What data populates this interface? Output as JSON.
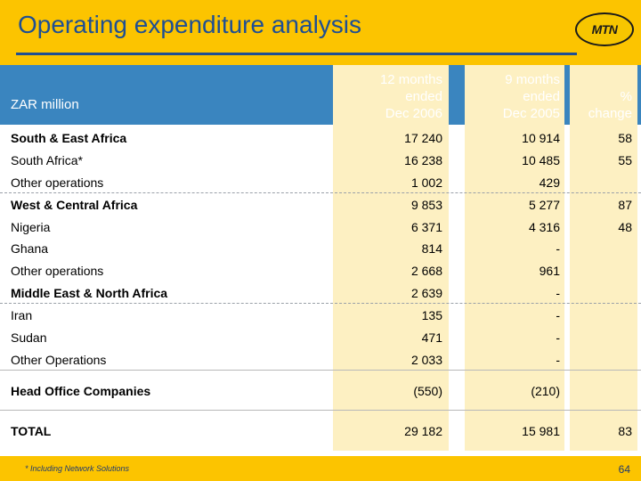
{
  "header": {
    "title": "Operating expenditure analysis",
    "logo_text": "MTN"
  },
  "table": {
    "label_header": "ZAR million",
    "col1": [
      "12 months",
      "ended",
      "Dec 2006"
    ],
    "col2": [
      "9 months",
      "ended",
      "Dec 2005"
    ],
    "col3": [
      "%",
      "change"
    ],
    "rows": [
      {
        "label": "South & East Africa",
        "v1": "17 240",
        "v2": "10 914",
        "v3": "58"
      },
      {
        "label": "South Africa*",
        "v1": "16 238",
        "v2": "10 485",
        "v3": "55"
      },
      {
        "label": "Other operations",
        "v1": "1 002",
        "v2": "429",
        "v3": ""
      },
      {
        "label": "West & Central Africa",
        "v1": "9 853",
        "v2": "5 277",
        "v3": "87"
      },
      {
        "label": "Nigeria",
        "v1": "6 371",
        "v2": "4 316",
        "v3": "48"
      },
      {
        "label": "Ghana",
        "v1": "814",
        "v2": "-",
        "v3": ""
      },
      {
        "label": "Other operations",
        "v1": "2 668",
        "v2": "961",
        "v3": ""
      },
      {
        "label": "Middle East & North Africa",
        "v1": "2 639",
        "v2": "-",
        "v3": ""
      },
      {
        "label": "Iran",
        "v1": "135",
        "v2": "-",
        "v3": ""
      },
      {
        "label": "Sudan",
        "v1": "471",
        "v2": "-",
        "v3": ""
      },
      {
        "label": "Other Operations",
        "v1": "2 033",
        "v2": "-",
        "v3": ""
      },
      {
        "label": "Head Office Companies",
        "v1": "(550)",
        "v2": "(210)",
        "v3": ""
      },
      {
        "label": "TOTAL",
        "v1": "29 182",
        "v2": "15 981",
        "v3": "83"
      }
    ]
  },
  "footer": {
    "footnote": "* Including Network Solutions",
    "page": "64"
  },
  "colors": {
    "brand_yellow": "#fcc400",
    "title_blue": "#1f4f93",
    "header_band": "#3a85bf",
    "column_stripe": "#fdf0c2"
  }
}
